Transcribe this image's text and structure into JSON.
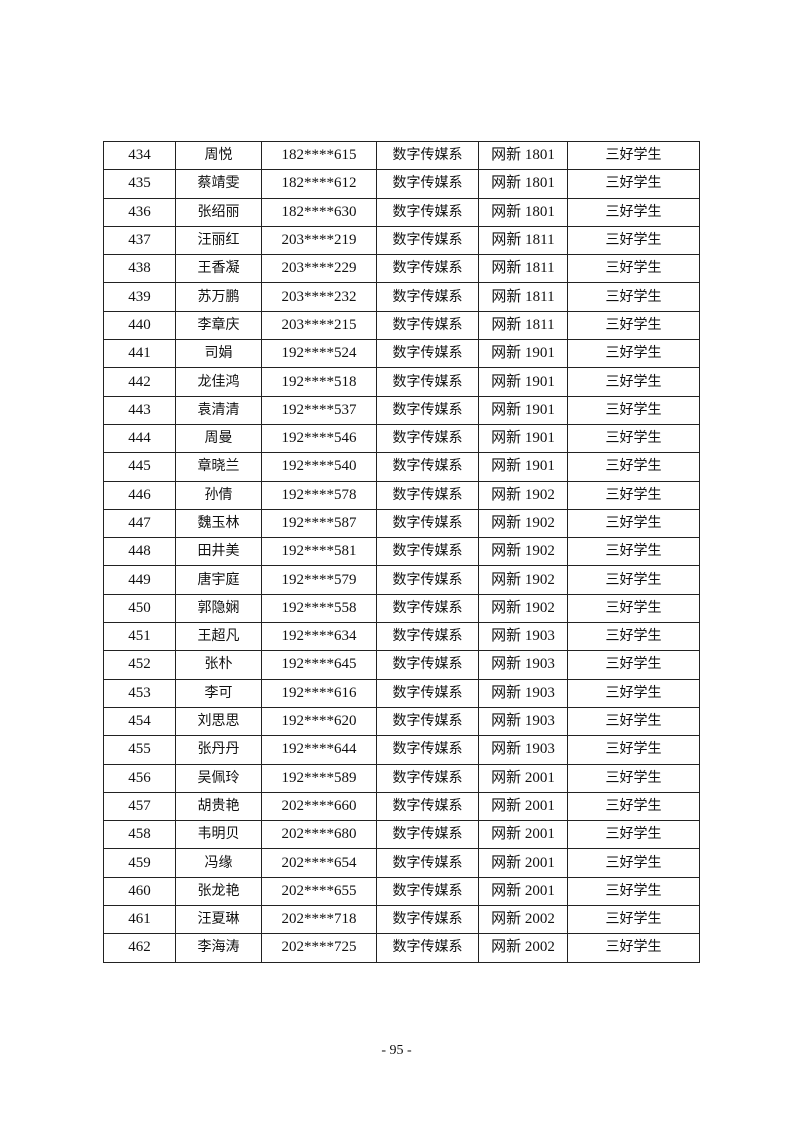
{
  "table": {
    "rows": [
      [
        "434",
        "周悦",
        "182****615",
        "数字传媒系",
        "网新 1801",
        "三好学生"
      ],
      [
        "435",
        "蔡靖雯",
        "182****612",
        "数字传媒系",
        "网新 1801",
        "三好学生"
      ],
      [
        "436",
        "张绍丽",
        "182****630",
        "数字传媒系",
        "网新 1801",
        "三好学生"
      ],
      [
        "437",
        "汪丽红",
        "203****219",
        "数字传媒系",
        "网新 1811",
        "三好学生"
      ],
      [
        "438",
        "王香凝",
        "203****229",
        "数字传媒系",
        "网新 1811",
        "三好学生"
      ],
      [
        "439",
        "苏万鹏",
        "203****232",
        "数字传媒系",
        "网新 1811",
        "三好学生"
      ],
      [
        "440",
        "李章庆",
        "203****215",
        "数字传媒系",
        "网新 1811",
        "三好学生"
      ],
      [
        "441",
        "司娟",
        "192****524",
        "数字传媒系",
        "网新 1901",
        "三好学生"
      ],
      [
        "442",
        "龙佳鸿",
        "192****518",
        "数字传媒系",
        "网新 1901",
        "三好学生"
      ],
      [
        "443",
        "袁清清",
        "192****537",
        "数字传媒系",
        "网新 1901",
        "三好学生"
      ],
      [
        "444",
        "周曼",
        "192****546",
        "数字传媒系",
        "网新 1901",
        "三好学生"
      ],
      [
        "445",
        "章晓兰",
        "192****540",
        "数字传媒系",
        "网新 1901",
        "三好学生"
      ],
      [
        "446",
        "孙倩",
        "192****578",
        "数字传媒系",
        "网新 1902",
        "三好学生"
      ],
      [
        "447",
        "魏玉林",
        "192****587",
        "数字传媒系",
        "网新 1902",
        "三好学生"
      ],
      [
        "448",
        "田井美",
        "192****581",
        "数字传媒系",
        "网新 1902",
        "三好学生"
      ],
      [
        "449",
        "唐宇庭",
        "192****579",
        "数字传媒系",
        "网新 1902",
        "三好学生"
      ],
      [
        "450",
        "郭隐娴",
        "192****558",
        "数字传媒系",
        "网新 1902",
        "三好学生"
      ],
      [
        "451",
        "王超凡",
        "192****634",
        "数字传媒系",
        "网新 1903",
        "三好学生"
      ],
      [
        "452",
        "张朴",
        "192****645",
        "数字传媒系",
        "网新 1903",
        "三好学生"
      ],
      [
        "453",
        "李可",
        "192****616",
        "数字传媒系",
        "网新 1903",
        "三好学生"
      ],
      [
        "454",
        "刘思思",
        "192****620",
        "数字传媒系",
        "网新 1903",
        "三好学生"
      ],
      [
        "455",
        "张丹丹",
        "192****644",
        "数字传媒系",
        "网新 1903",
        "三好学生"
      ],
      [
        "456",
        "吴佩玲",
        "192****589",
        "数字传媒系",
        "网新 2001",
        "三好学生"
      ],
      [
        "457",
        "胡贵艳",
        "202****660",
        "数字传媒系",
        "网新 2001",
        "三好学生"
      ],
      [
        "458",
        "韦明贝",
        "202****680",
        "数字传媒系",
        "网新 2001",
        "三好学生"
      ],
      [
        "459",
        "冯缘",
        "202****654",
        "数字传媒系",
        "网新 2001",
        "三好学生"
      ],
      [
        "460",
        "张龙艳",
        "202****655",
        "数字传媒系",
        "网新 2001",
        "三好学生"
      ],
      [
        "461",
        "汪夏琳",
        "202****718",
        "数字传媒系",
        "网新 2002",
        "三好学生"
      ],
      [
        "462",
        "李海涛",
        "202****725",
        "数字传媒系",
        "网新 2002",
        "三好学生"
      ]
    ]
  },
  "footer": {
    "page_number": "- 95 -"
  }
}
